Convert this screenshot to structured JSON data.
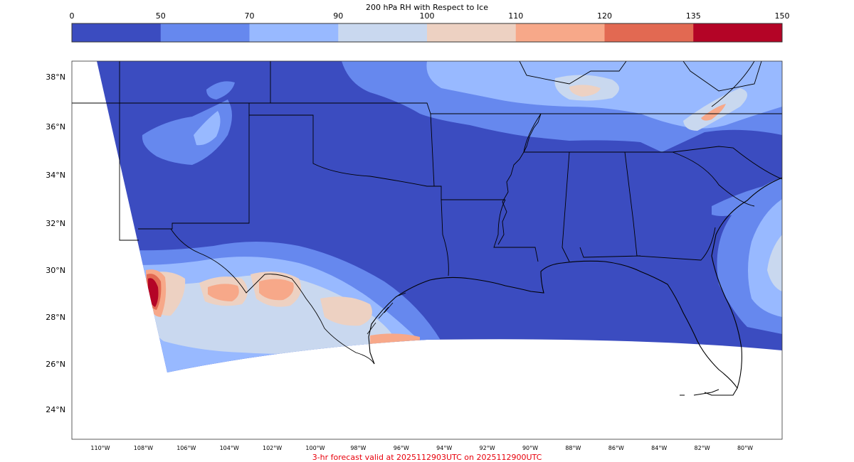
{
  "colorbar": {
    "title": "200 hPa RH with Respect to Ice",
    "ticks": [
      "0",
      "50",
      "70",
      "90",
      "100",
      "110",
      "120",
      "135",
      "150"
    ],
    "colors": [
      "#3b4cc0",
      "#6688ee",
      "#98b9ff",
      "#c9d8ef",
      "#edd1c2",
      "#f7a889",
      "#e26952",
      "#b40426"
    ]
  },
  "map": {
    "lat_labels": [
      "38°N",
      "36°N",
      "34°N",
      "32°N",
      "30°N",
      "28°N",
      "26°N",
      "24°N"
    ],
    "lon_labels": [
      "110°W",
      "108°W",
      "106°W",
      "104°W",
      "102°W",
      "100°W",
      "98°W",
      "96°W",
      "94°W",
      "92°W",
      "90°W",
      "88°W",
      "86°W",
      "84°W",
      "82°W",
      "80°W"
    ],
    "base_color": "#3b4cc0"
  },
  "footer": {
    "text": "3-hr forecast valid at 2025112903UTC on 2025112900UTC"
  }
}
